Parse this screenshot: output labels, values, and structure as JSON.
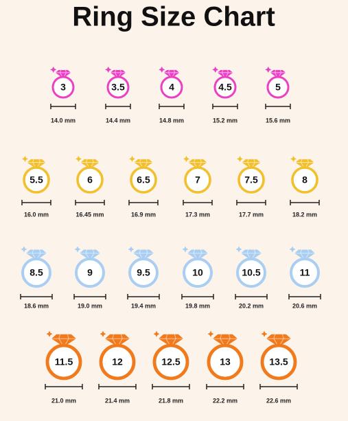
{
  "title": "Ring Size Chart",
  "rows": [
    {
      "rings": [
        {
          "size": "3",
          "diameter": "14.0 mm"
        },
        {
          "size": "3.5",
          "diameter": "14.4 mm"
        },
        {
          "size": "4",
          "diameter": "14.8 mm"
        },
        {
          "size": "4.5",
          "diameter": "15.2 mm"
        },
        {
          "size": "5",
          "diameter": "15.6 mm"
        }
      ]
    },
    {
      "rings": [
        {
          "size": "5.5",
          "diameter": "16.0 mm"
        },
        {
          "size": "6",
          "diameter": "16.45 mm"
        },
        {
          "size": "6.5",
          "diameter": "16.9 mm"
        },
        {
          "size": "7",
          "diameter": "17.3 mm"
        },
        {
          "size": "7.5",
          "diameter": "17.7 mm"
        },
        {
          "size": "8",
          "diameter": "18.2 mm"
        }
      ]
    },
    {
      "rings": [
        {
          "size": "8.5",
          "diameter": "18.6 mm"
        },
        {
          "size": "9",
          "diameter": "19.0 mm"
        },
        {
          "size": "9.5",
          "diameter": "19.4 mm"
        },
        {
          "size": "10",
          "diameter": "19.8 mm"
        },
        {
          "size": "10.5",
          "diameter": "20.2 mm"
        },
        {
          "size": "11",
          "diameter": "20.6 mm"
        }
      ]
    },
    {
      "rings": [
        {
          "size": "11.5",
          "diameter": "21.0 mm"
        },
        {
          "size": "12",
          "diameter": "21.4 mm"
        },
        {
          "size": "12.5",
          "diameter": "21.8 mm"
        },
        {
          "size": "13",
          "diameter": "22.2 mm"
        },
        {
          "size": "13.5",
          "diameter": "22.6 mm"
        }
      ]
    }
  ]
}
